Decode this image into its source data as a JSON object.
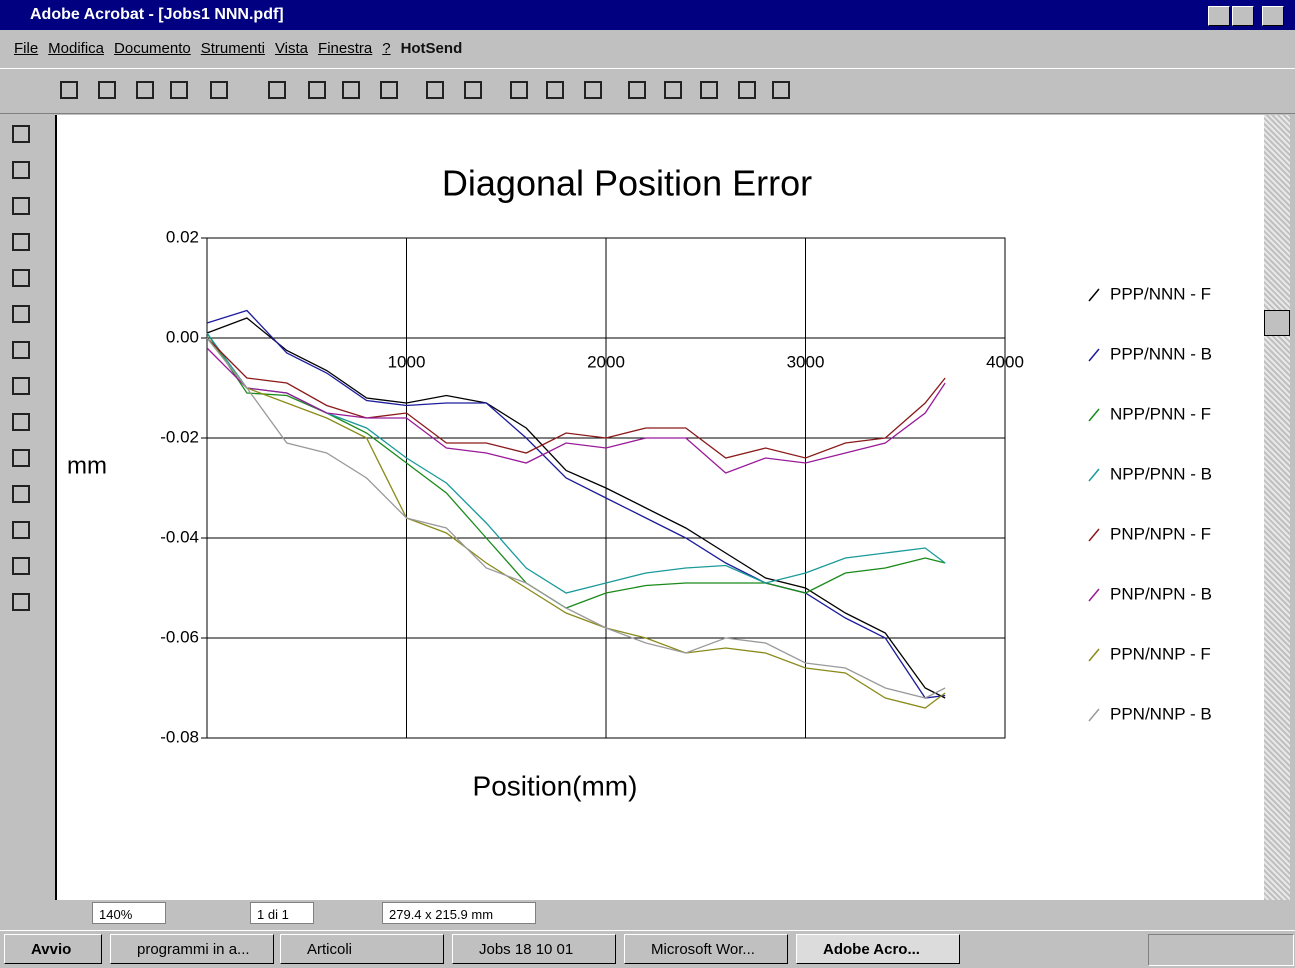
{
  "window": {
    "title": "Adobe Acrobat - [Jobs1 NNN.pdf]",
    "menu": [
      "File",
      "Modifica",
      "Documento",
      "Strumenti",
      "Vista",
      "Finestra",
      "?",
      "HotSend"
    ]
  },
  "status": {
    "zoom": "140%",
    "page": "1 di 1",
    "size": "279.4 x 215.9 mm"
  },
  "taskbar": {
    "start": "Avvio",
    "buttons": [
      "programmi in a...",
      "Articoli",
      "Jobs 18 10 01",
      "Microsoft Wor...",
      "Adobe Acro..."
    ]
  },
  "chart_data": {
    "type": "line",
    "title": "Diagonal Position Error",
    "x_label": "Position(mm)",
    "y_label": "mm",
    "xlim": [
      0,
      4000
    ],
    "xticks": [
      1000,
      2000,
      3000,
      4000
    ],
    "ylim": [
      -0.08,
      0.02
    ],
    "yticks": [
      -0.08,
      -0.06,
      -0.04,
      -0.02,
      {
        "value": 0,
        "label": "0.00"
      },
      0.02
    ],
    "grid": true,
    "legend": "right",
    "x": [
      0,
      200,
      400,
      600,
      800,
      1000,
      1200,
      1400,
      1600,
      1800,
      2000,
      2200,
      2400,
      2600,
      2800,
      3000,
      3200,
      3400,
      3600,
      3700
    ],
    "series": [
      {
        "name": "PPP/NNN - F",
        "color": "#000000",
        "values": [
          0.001,
          0.004,
          -0.0025,
          -0.0065,
          -0.012,
          -0.013,
          -0.0115,
          -0.013,
          -0.018,
          -0.0265,
          -0.03,
          -0.034,
          -0.038,
          -0.043,
          -0.048,
          -0.05,
          -0.055,
          -0.059,
          -0.07,
          -0.072
        ]
      },
      {
        "name": "PPP/NNN - B",
        "color": "#1c1c9c",
        "values": [
          0.003,
          0.0055,
          -0.003,
          -0.007,
          -0.0125,
          -0.0135,
          -0.013,
          -0.013,
          -0.02,
          -0.028,
          -0.032,
          -0.036,
          -0.04,
          -0.045,
          -0.049,
          -0.051,
          -0.056,
          -0.06,
          -0.072,
          -0.0715
        ]
      },
      {
        "name": "NPP/PNN - F",
        "color": "#1a8a1a",
        "values": [
          0.001,
          -0.011,
          -0.0115,
          -0.015,
          -0.019,
          -0.025,
          -0.031,
          -0.04,
          -0.049,
          -0.054,
          -0.051,
          -0.0495,
          -0.049,
          -0.049,
          -0.049,
          -0.051,
          -0.047,
          -0.046,
          -0.044,
          -0.045
        ]
      },
      {
        "name": "NPP/PNN - B",
        "color": "#1a9a9a",
        "values": [
          0.001,
          -0.01,
          -0.011,
          -0.015,
          -0.018,
          -0.024,
          -0.029,
          -0.037,
          -0.046,
          -0.051,
          -0.049,
          -0.047,
          -0.046,
          -0.0455,
          -0.049,
          -0.047,
          -0.044,
          -0.043,
          -0.042,
          -0.045
        ]
      },
      {
        "name": "PNP/NPN - F",
        "color": "#8b1a1a",
        "values": [
          0,
          -0.008,
          -0.009,
          -0.0135,
          -0.016,
          -0.015,
          -0.021,
          -0.021,
          -0.023,
          -0.019,
          -0.02,
          -0.018,
          -0.018,
          -0.024,
          -0.022,
          -0.024,
          -0.021,
          -0.02,
          -0.013,
          -0.008
        ]
      },
      {
        "name": "PNP/NPN - B",
        "color": "#9a1a9a",
        "values": [
          -0.002,
          -0.01,
          -0.011,
          -0.015,
          -0.016,
          -0.016,
          -0.022,
          -0.023,
          -0.025,
          -0.021,
          -0.022,
          -0.02,
          -0.02,
          -0.027,
          -0.024,
          -0.025,
          -0.023,
          -0.021,
          -0.015,
          -0.009
        ]
      },
      {
        "name": "PPN/NNP - F",
        "color": "#8a8a1a",
        "values": [
          0,
          -0.01,
          -0.013,
          -0.016,
          -0.02,
          -0.036,
          -0.039,
          -0.045,
          -0.05,
          -0.055,
          -0.058,
          -0.06,
          -0.063,
          -0.062,
          -0.063,
          -0.066,
          -0.067,
          -0.072,
          -0.074,
          -0.071
        ]
      },
      {
        "name": "PPN/NNP - B",
        "color": "#9a9a9a",
        "values": [
          0,
          -0.01,
          -0.021,
          -0.023,
          -0.028,
          -0.036,
          -0.038,
          -0.046,
          -0.049,
          -0.054,
          -0.058,
          -0.061,
          -0.063,
          -0.06,
          -0.061,
          -0.065,
          -0.066,
          -0.07,
          -0.072,
          -0.07
        ]
      }
    ]
  }
}
